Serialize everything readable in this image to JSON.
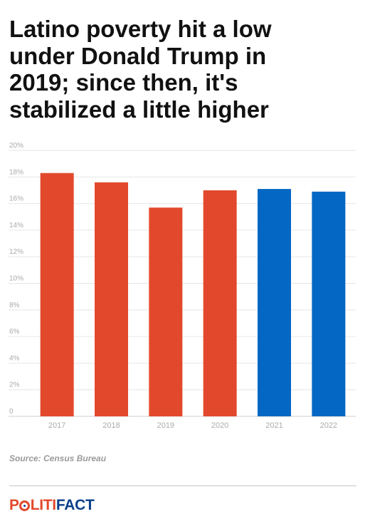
{
  "title_lines": [
    "Latino poverty hit a low",
    "under Donald Trump in",
    "2019; since then, it's",
    "stabilized a little higher"
  ],
  "source": "Source: Census Bureau",
  "logo": {
    "part1": "P",
    "part2": "LITI",
    "part3": "FACT"
  },
  "colors": {
    "red": "#e2492c",
    "blue": "#0467c4",
    "grid": "#e6e6e6",
    "tick": "#aaaaaa"
  },
  "chart_data": {
    "type": "bar",
    "categories": [
      "2017",
      "2018",
      "2019",
      "2020",
      "2021",
      "2022"
    ],
    "values": [
      18.3,
      17.6,
      15.7,
      17.0,
      17.1,
      16.9
    ],
    "bar_colors": [
      "#e2492c",
      "#e2492c",
      "#e2492c",
      "#e2492c",
      "#0467c4",
      "#0467c4"
    ],
    "ylim": [
      0,
      20
    ],
    "yticks": [
      0,
      2,
      4,
      6,
      8,
      10,
      12,
      14,
      16,
      18,
      20
    ],
    "ytick_labels": [
      "0",
      "2%",
      "4%",
      "6%",
      "8%",
      "10%",
      "12%",
      "14%",
      "16%",
      "18%",
      "20%"
    ],
    "grid": true
  }
}
